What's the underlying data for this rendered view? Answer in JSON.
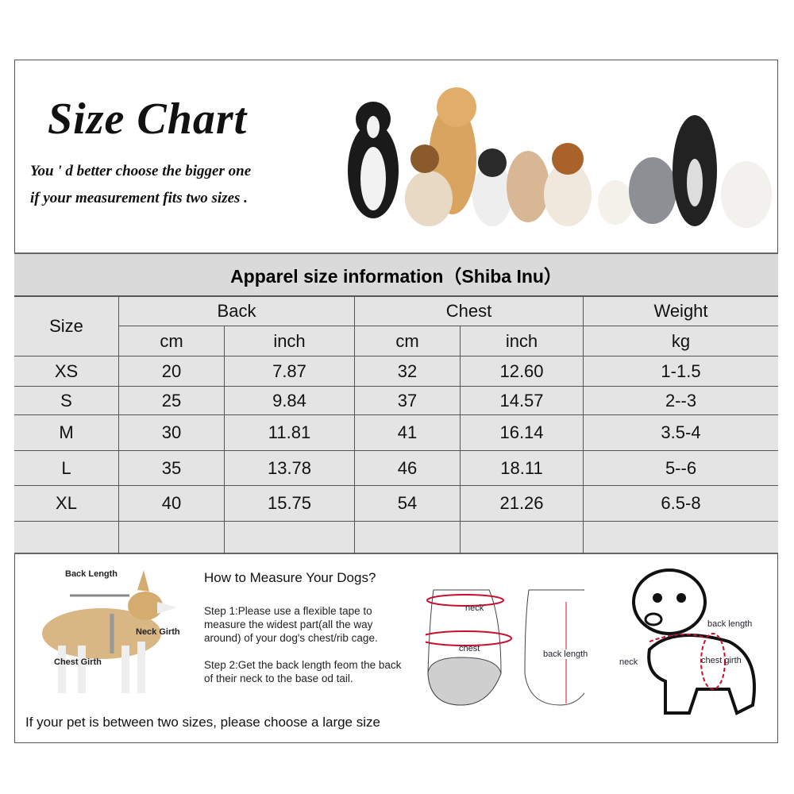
{
  "header": {
    "title": "Size Chart",
    "subtitle_line1": "You ' d better choose the bigger one",
    "subtitle_line2": "if your measurement fits two sizes ."
  },
  "table": {
    "title": "Apparel  size  information（Shiba Inu）",
    "size_header": "Size",
    "groups": [
      "Back",
      "Chest",
      "Weight"
    ],
    "units": [
      "cm",
      "inch",
      "cm",
      "inch",
      "kg"
    ],
    "rows": [
      [
        "XS",
        "20",
        "7.87",
        "32",
        "12.60",
        "1-1.5"
      ],
      [
        "S",
        "25",
        "9.84",
        "37",
        "14.57",
        "2--3"
      ],
      [
        "M",
        "30",
        "11.81",
        "41",
        "16.14",
        "3.5-4"
      ],
      [
        "L",
        "35",
        "13.78",
        "46",
        "18.11",
        "5--6"
      ],
      [
        "XL",
        "40",
        "15.75",
        "54",
        "21.26",
        "6.5-8"
      ]
    ]
  },
  "guide": {
    "dog_labels": {
      "back_length": "Back Length",
      "neck_girth": "Neck Girth",
      "chest_girth": "Chest Girth"
    },
    "heading": "How to Measure Your Dogs?",
    "step1": "Step 1:Please use a flexible tape to measure the widest part(all the way around) of your dog's chest/rib cage.",
    "step2": "Step 2:Get the back length feom the back of their neck to the base od tail.",
    "note": "If your pet is between two sizes, please choose a large size",
    "garment_labels": {
      "neck": "neck",
      "chest": "chest",
      "back_length": "back length"
    },
    "puppy_labels": {
      "back_length": "back length",
      "neck": "neck",
      "chest_girth": "chest girth"
    },
    "accent_color": "#c8102e"
  }
}
